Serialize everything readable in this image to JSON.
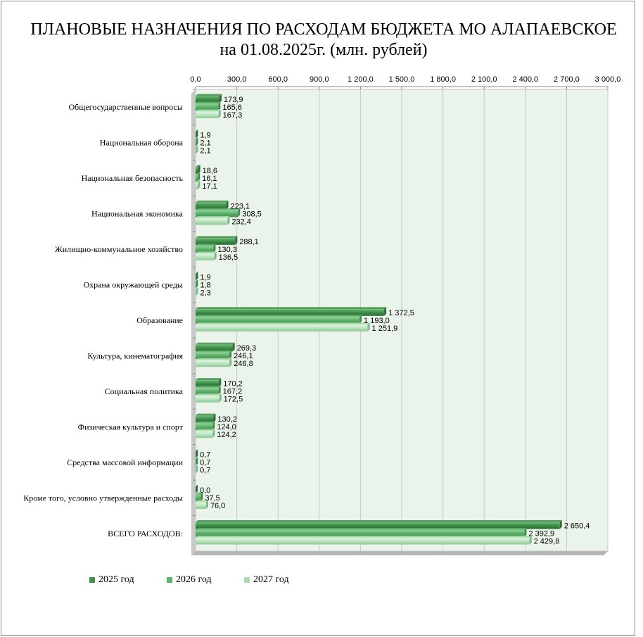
{
  "chart_data": {
    "type": "bar",
    "orientation": "horizontal",
    "title": [
      "ПЛАНОВЫЕ НАЗНАЧЕНИЯ ПО РАСХОДАМ БЮДЖЕТА МО АЛАПАЕВСКОЕ",
      "на 01.08.2025г. (млн. рублей)"
    ],
    "xlim": [
      0,
      3000
    ],
    "xticks": [
      0,
      300,
      600,
      900,
      1200,
      1500,
      1800,
      2100,
      2400,
      2700,
      3000
    ],
    "xtick_labels": [
      "0,0",
      "300,0",
      "600,0",
      "900,0",
      "1 200,0",
      "1 500,0",
      "1 800,0",
      "2 100,0",
      "2 400,0",
      "2 700,0",
      "3 000,0"
    ],
    "xaxis_position": "top",
    "grid": true,
    "legend_position": "bottom-left",
    "categories": [
      "Общегосударственные вопросы",
      "Национальная оборона",
      "Национальная безопасность",
      "Национальная экономика",
      "Жилищно-коммунальное хозяйство",
      "Охрана окружающей среды",
      "Образование",
      "Культура, кинематография",
      "Социальная политика",
      "Физическая культура и спорт",
      "Средства массовой информации",
      "Кроме того, условно утвержденные расходы",
      "ВСЕГО РАСХОДОВ:"
    ],
    "series": [
      {
        "name": "2025 год",
        "color": "#3f8f49",
        "values": [
          173.9,
          1.9,
          18.6,
          223.1,
          288.1,
          1.9,
          1372.5,
          269.3,
          170.2,
          130.2,
          0.7,
          0.0,
          2650.4
        ],
        "labels": [
          "173,9",
          "1,9",
          "18,6",
          "223,1",
          "288,1",
          "1,9",
          "1 372,5",
          "269,3",
          "170,2",
          "130,2",
          "0,7",
          "0,0",
          "2 650,4"
        ]
      },
      {
        "name": "2026 год",
        "color": "#5fb36b",
        "values": [
          165.6,
          2.1,
          16.1,
          308.5,
          130.3,
          1.8,
          1193.0,
          246.1,
          167.2,
          124.0,
          0.7,
          37.5,
          2392.9
        ],
        "labels": [
          "165,6",
          "2,1",
          "16,1",
          "308,5",
          "130,3",
          "1,8",
          "1 193,0",
          "246,1",
          "167,2",
          "124,0",
          "0,7",
          "37,5",
          "2 392,9"
        ]
      },
      {
        "name": "2027 год",
        "color": "#a9dcae",
        "values": [
          167.3,
          2.1,
          17.1,
          232.4,
          136.5,
          2.3,
          1251.9,
          246.8,
          172.5,
          124.2,
          0.7,
          76.0,
          2429.8
        ],
        "labels": [
          "167,3",
          "2,1",
          "17,1",
          "232,4",
          "136,5",
          "2,3",
          "1 251,9",
          "246,8",
          "172,5",
          "124,2",
          "0,7",
          "76,0",
          "2 429,8"
        ]
      }
    ],
    "plot_background": "#eaf4ea"
  }
}
